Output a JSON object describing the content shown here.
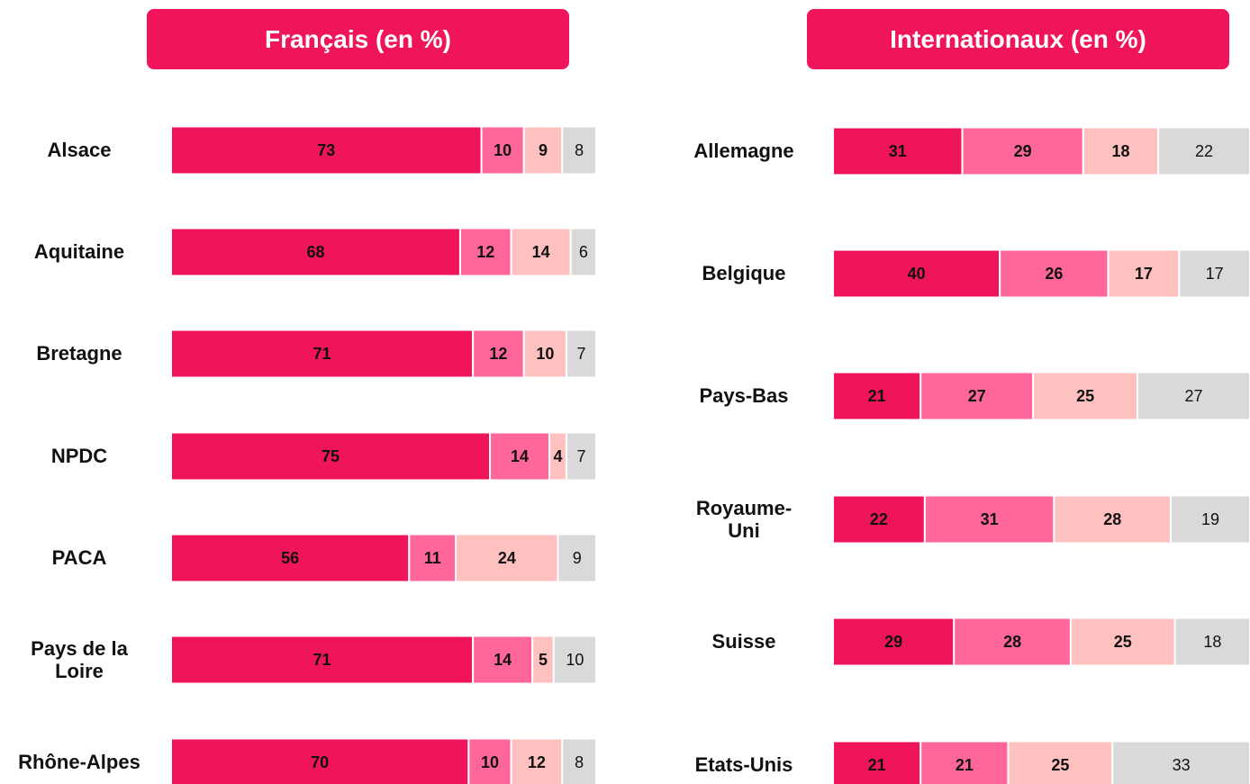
{
  "chart_data": [
    {
      "type": "bar",
      "orientation": "horizontal",
      "stacked": true,
      "title": "Français (en %)",
      "categories": [
        "Alsace",
        "Aquitaine",
        "Bretagne",
        "NPDC",
        "PACA",
        "Pays de la Loire",
        "Rhône-Alpes"
      ],
      "series": [
        {
          "color": "#f0145a",
          "values": [
            73,
            68,
            71,
            75,
            56,
            71,
            70
          ]
        },
        {
          "color": "#ff6699",
          "values": [
            10,
            12,
            12,
            14,
            11,
            14,
            10
          ]
        },
        {
          "color": "#ffc0c0",
          "values": [
            9,
            14,
            10,
            4,
            24,
            5,
            12
          ]
        },
        {
          "color": "#d9d9d9",
          "values": [
            8,
            6,
            7,
            7,
            9,
            10,
            8
          ]
        }
      ]
    },
    {
      "type": "bar",
      "orientation": "horizontal",
      "stacked": true,
      "title": "Internationaux (en %)",
      "categories": [
        "Allemagne",
        "Belgique",
        "Pays-Bas",
        "Royaume-Uni",
        "Suisse",
        "Etats-Unis"
      ],
      "series": [
        {
          "color": "#f0145a",
          "values": [
            31,
            40,
            21,
            22,
            29,
            21
          ]
        },
        {
          "color": "#ff6699",
          "values": [
            29,
            26,
            27,
            31,
            28,
            21
          ]
        },
        {
          "color": "#ffc0c0",
          "values": [
            18,
            17,
            25,
            28,
            25,
            25
          ]
        },
        {
          "color": "#d9d9d9",
          "values": [
            22,
            17,
            27,
            19,
            18,
            33
          ]
        }
      ]
    }
  ]
}
